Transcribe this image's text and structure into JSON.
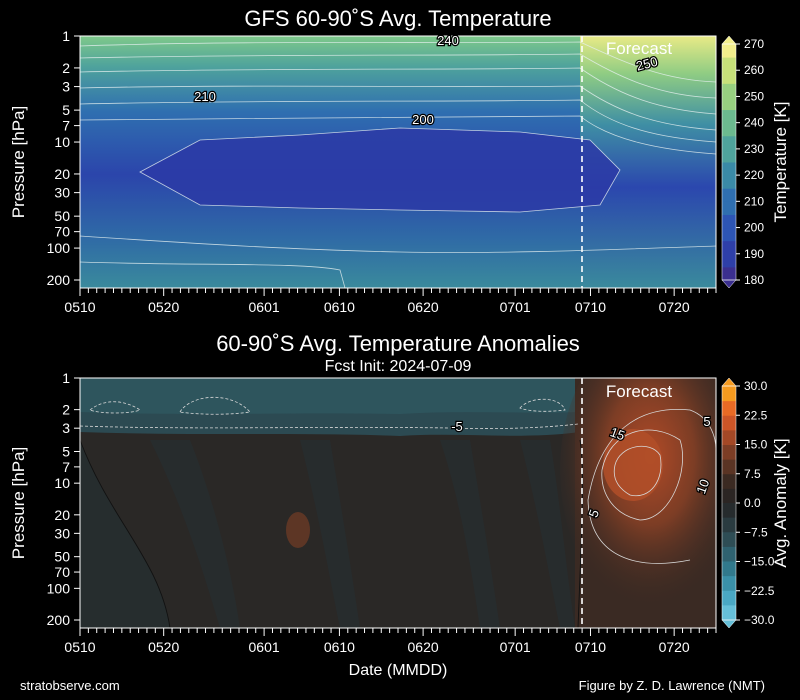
{
  "chart_data": [
    {
      "type": "heatmap",
      "title": "GFS 60-90˚S Avg. Temperature",
      "ylabel": "Pressure [hPa]",
      "y_scale": "log-inverted",
      "y_ticks": [
        "1",
        "2",
        "3",
        "5",
        "7",
        "10",
        "20",
        "30",
        "50",
        "70",
        "100",
        "200"
      ],
      "x_ticks": [
        "0510",
        "0520",
        "0601",
        "0610",
        "0620",
        "0701",
        "0710",
        "0720"
      ],
      "forecast_label": "Forecast",
      "colorbar": {
        "label": "Temperature [K]",
        "ticks": [
          "180",
          "190",
          "200",
          "210",
          "220",
          "230",
          "240",
          "250",
          "260",
          "270"
        ],
        "range": [
          180,
          270
        ],
        "colors": [
          "#3b2f8f",
          "#2e3fa8",
          "#2d55b4",
          "#2f6fb0",
          "#3a8aa7",
          "#4fa39c",
          "#6cba8f",
          "#97cf80",
          "#c7e07a",
          "#f2ee8c"
        ]
      },
      "contour_labels": [
        "240",
        "250",
        "210",
        "200"
      ],
      "forecast_init": "2024-07-09"
    },
    {
      "type": "heatmap",
      "title": "60-90˚S Avg. Temperature Anomalies",
      "subtitle": "Fcst Init: 2024-07-09",
      "ylabel": "Pressure [hPa]",
      "xlabel": "Date (MMDD)",
      "y_scale": "log-inverted",
      "y_ticks": [
        "1",
        "2",
        "3",
        "5",
        "7",
        "10",
        "20",
        "30",
        "50",
        "70",
        "100",
        "200"
      ],
      "x_ticks": [
        "0510",
        "0520",
        "0601",
        "0610",
        "0620",
        "0701",
        "0710",
        "0720"
      ],
      "forecast_label": "Forecast",
      "colorbar": {
        "label": "Avg. Anomaly [K]",
        "ticks": [
          "30.0",
          "22.5",
          "15.0",
          "7.5",
          "0.0",
          "−7.5",
          "−15.0",
          "−22.5",
          "−30.0"
        ],
        "range": [
          -30,
          30
        ],
        "colors_pos": [
          "#2b2523",
          "#3b2a22",
          "#5a3424",
          "#7c3d25",
          "#a34826",
          "#cc5527",
          "#e86a25",
          "#f59a1f"
        ],
        "colors_neg": [
          "#262b2d",
          "#2a3b40",
          "#2e4d55",
          "#2f6270",
          "#31798c",
          "#3a90a8",
          "#4aa8c4",
          "#66bfd8"
        ]
      },
      "contour_labels": [
        "-5",
        "15",
        "5",
        "10",
        "5"
      ]
    }
  ],
  "footer": {
    "left": "stratobserve.com",
    "right": "Figure by Z. D. Lawrence (NMT)"
  }
}
